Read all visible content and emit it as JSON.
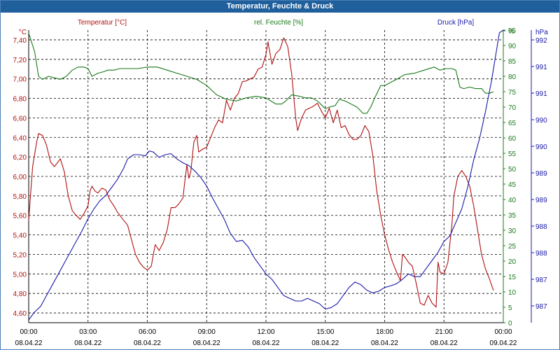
{
  "window": {
    "title": "Temperatur, Feuchte & Druck"
  },
  "colors": {
    "temperature": "#b01010",
    "humidity": "#1a7a1a",
    "pressure": "#1a1aa8",
    "grid": "#000000",
    "titlebar": "#1f5f9c"
  },
  "chart_data": {
    "type": "line",
    "title": "Temperatur, Feuchte & Druck",
    "x_unit": "hours since 08.04.22 00:00",
    "x_range": [
      0,
      24
    ],
    "x_ticks": [
      {
        "time": "00:00",
        "date": "08.04.22"
      },
      {
        "time": "03:00",
        "date": "08.04.22"
      },
      {
        "time": "06:00",
        "date": "08.04.22"
      },
      {
        "time": "09:00",
        "date": "08.04.22"
      },
      {
        "time": "12:00",
        "date": "08.04.22"
      },
      {
        "time": "15:00",
        "date": "08.04.22"
      },
      {
        "time": "18:00",
        "date": "08.04.22"
      },
      {
        "time": "21:00",
        "date": "08.04.22"
      },
      {
        "time": "00:00",
        "date": "09.04.22"
      }
    ],
    "axes": {
      "temperature": {
        "unit": "°C",
        "header": "Temperatur [°C]",
        "range": [
          4.5,
          7.5
        ],
        "ticks": [
          "4,60",
          "4,80",
          "5,00",
          "5,20",
          "5,40",
          "5,60",
          "5,80",
          "6,00",
          "6,20",
          "6,40",
          "6,60",
          "6,80",
          "7,00",
          "7,20",
          "7,40"
        ]
      },
      "humidity": {
        "unit": "%",
        "header": "rel. Feuchte [%]",
        "range": [
          0,
          95
        ],
        "ticks": [
          "0",
          "5",
          "10",
          "15",
          "20",
          "25",
          "30",
          "35",
          "40",
          "45",
          "50",
          "55",
          "60",
          "65",
          "70",
          "75",
          "80",
          "85",
          "90",
          "95",
          "%"
        ]
      },
      "pressure": {
        "unit": "hPa",
        "header": "Druck [hPa]",
        "range": [
          986.7,
          992.1
        ],
        "ticks": [
          "987",
          "987",
          "988",
          "988",
          "989",
          "989",
          "990",
          "990",
          "991",
          "991",
          "992"
        ]
      }
    },
    "grid": true,
    "series": [
      {
        "name": "Temperatur [°C]",
        "axis": "temperature",
        "points": [
          [
            0,
            5.55
          ],
          [
            0.2,
            6.1
          ],
          [
            0.4,
            6.35
          ],
          [
            0.5,
            6.44
          ],
          [
            0.7,
            6.42
          ],
          [
            0.9,
            6.32
          ],
          [
            1.1,
            6.15
          ],
          [
            1.3,
            6.1
          ],
          [
            1.6,
            6.18
          ],
          [
            1.8,
            6.05
          ],
          [
            2.0,
            5.8
          ],
          [
            2.2,
            5.65
          ],
          [
            2.4,
            5.6
          ],
          [
            2.6,
            5.56
          ],
          [
            2.8,
            5.62
          ],
          [
            3.0,
            5.7
          ],
          [
            3.1,
            5.85
          ],
          [
            3.2,
            5.9
          ],
          [
            3.35,
            5.85
          ],
          [
            3.5,
            5.83
          ],
          [
            3.7,
            5.88
          ],
          [
            3.9,
            5.86
          ],
          [
            4.1,
            5.76
          ],
          [
            4.3,
            5.7
          ],
          [
            4.5,
            5.63
          ],
          [
            4.8,
            5.55
          ],
          [
            5.0,
            5.5
          ],
          [
            5.2,
            5.35
          ],
          [
            5.4,
            5.2
          ],
          [
            5.6,
            5.12
          ],
          [
            5.8,
            5.07
          ],
          [
            6.0,
            5.04
          ],
          [
            6.2,
            5.08
          ],
          [
            6.3,
            5.2
          ],
          [
            6.4,
            5.3
          ],
          [
            6.6,
            5.24
          ],
          [
            6.8,
            5.32
          ],
          [
            7.0,
            5.45
          ],
          [
            7.2,
            5.68
          ],
          [
            7.4,
            5.68
          ],
          [
            7.6,
            5.72
          ],
          [
            7.8,
            5.78
          ],
          [
            7.9,
            5.96
          ],
          [
            8.0,
            6.12
          ],
          [
            8.1,
            5.98
          ],
          [
            8.2,
            6.05
          ],
          [
            8.35,
            6.35
          ],
          [
            8.5,
            6.42
          ],
          [
            8.6,
            6.25
          ],
          [
            8.8,
            6.28
          ],
          [
            9.0,
            6.3
          ],
          [
            9.2,
            6.4
          ],
          [
            9.4,
            6.5
          ],
          [
            9.6,
            6.58
          ],
          [
            9.8,
            6.55
          ],
          [
            10.0,
            6.78
          ],
          [
            10.2,
            6.68
          ],
          [
            10.4,
            6.8
          ],
          [
            10.6,
            6.85
          ],
          [
            10.8,
            6.97
          ],
          [
            11.0,
            6.98
          ],
          [
            11.2,
            7.0
          ],
          [
            11.4,
            7.02
          ],
          [
            11.6,
            7.1
          ],
          [
            11.8,
            7.12
          ],
          [
            12.0,
            7.25
          ],
          [
            12.1,
            7.38
          ],
          [
            12.3,
            7.15
          ],
          [
            12.5,
            7.26
          ],
          [
            12.7,
            7.3
          ],
          [
            12.9,
            7.42
          ],
          [
            13.1,
            7.33
          ],
          [
            13.3,
            7.05
          ],
          [
            13.5,
            6.6
          ],
          [
            13.6,
            6.47
          ],
          [
            13.8,
            6.6
          ],
          [
            14.0,
            6.68
          ],
          [
            14.2,
            6.7
          ],
          [
            14.4,
            6.72
          ],
          [
            14.6,
            6.75
          ],
          [
            14.8,
            6.67
          ],
          [
            15.0,
            6.6
          ],
          [
            15.2,
            6.7
          ],
          [
            15.4,
            6.55
          ],
          [
            15.6,
            6.68
          ],
          [
            15.8,
            6.5
          ],
          [
            16.0,
            6.52
          ],
          [
            16.2,
            6.43
          ],
          [
            16.4,
            6.38
          ],
          [
            16.6,
            6.38
          ],
          [
            16.8,
            6.42
          ],
          [
            17.0,
            6.52
          ],
          [
            17.2,
            6.46
          ],
          [
            17.4,
            6.22
          ],
          [
            17.6,
            5.85
          ],
          [
            17.8,
            5.6
          ],
          [
            18.0,
            5.4
          ],
          [
            18.2,
            5.25
          ],
          [
            18.4,
            5.12
          ],
          [
            18.6,
            5.02
          ],
          [
            18.8,
            4.93
          ],
          [
            18.9,
            5.2
          ],
          [
            19.0,
            5.18
          ],
          [
            19.2,
            5.12
          ],
          [
            19.4,
            5.08
          ],
          [
            19.6,
            4.9
          ],
          [
            19.8,
            4.7
          ],
          [
            20.0,
            4.68
          ],
          [
            20.2,
            4.78
          ],
          [
            20.4,
            4.7
          ],
          [
            20.6,
            4.66
          ],
          [
            20.7,
            5.12
          ],
          [
            20.8,
            5.02
          ],
          [
            21.0,
            5.0
          ],
          [
            21.2,
            5.12
          ],
          [
            21.4,
            5.5
          ],
          [
            21.5,
            5.8
          ],
          [
            21.7,
            6.0
          ],
          [
            21.9,
            6.06
          ],
          [
            22.1,
            6.0
          ],
          [
            22.3,
            5.9
          ],
          [
            22.5,
            5.7
          ],
          [
            22.7,
            5.45
          ],
          [
            22.9,
            5.2
          ],
          [
            23.1,
            5.05
          ],
          [
            23.3,
            4.95
          ],
          [
            23.5,
            4.83
          ]
        ]
      },
      {
        "name": "rel. Feuchte [%]",
        "axis": "humidity",
        "points": [
          [
            0,
            94
          ],
          [
            0.3,
            88
          ],
          [
            0.5,
            80
          ],
          [
            0.7,
            79
          ],
          [
            1.0,
            80
          ],
          [
            1.3,
            79.5
          ],
          [
            1.6,
            79
          ],
          [
            1.9,
            80
          ],
          [
            2.2,
            82
          ],
          [
            2.5,
            83
          ],
          [
            2.8,
            83
          ],
          [
            3.0,
            82.5
          ],
          [
            3.2,
            80
          ],
          [
            3.5,
            81
          ],
          [
            3.8,
            81.5
          ],
          [
            4.0,
            82
          ],
          [
            4.3,
            82
          ],
          [
            4.6,
            82.5
          ],
          [
            5.0,
            82.5
          ],
          [
            5.5,
            82.5
          ],
          [
            6.0,
            83
          ],
          [
            6.5,
            83
          ],
          [
            7.0,
            82
          ],
          [
            7.5,
            81
          ],
          [
            8.0,
            80
          ],
          [
            8.5,
            79
          ],
          [
            9.0,
            77
          ],
          [
            9.5,
            74
          ],
          [
            10.0,
            72.5
          ],
          [
            10.5,
            72
          ],
          [
            11.0,
            73
          ],
          [
            11.5,
            73.5
          ],
          [
            12.0,
            73
          ],
          [
            12.5,
            71
          ],
          [
            12.8,
            71
          ],
          [
            13.0,
            72
          ],
          [
            13.3,
            74
          ],
          [
            13.7,
            73.5
          ],
          [
            14.0,
            73
          ],
          [
            14.3,
            73
          ],
          [
            14.6,
            72
          ],
          [
            15.0,
            69.5
          ],
          [
            15.2,
            70
          ],
          [
            15.5,
            70.5
          ],
          [
            15.7,
            72.5
          ],
          [
            16.0,
            72
          ],
          [
            16.3,
            71
          ],
          [
            16.6,
            70
          ],
          [
            16.9,
            68
          ],
          [
            17.1,
            68
          ],
          [
            17.3,
            70
          ],
          [
            17.5,
            73
          ],
          [
            17.8,
            77
          ],
          [
            18.0,
            77
          ],
          [
            18.3,
            78
          ],
          [
            18.6,
            79
          ],
          [
            19.0,
            80.5
          ],
          [
            19.5,
            81
          ],
          [
            20.0,
            82
          ],
          [
            20.5,
            83
          ],
          [
            20.8,
            82
          ],
          [
            21.1,
            82.5
          ],
          [
            21.4,
            82.5
          ],
          [
            21.6,
            82
          ],
          [
            21.8,
            76.5
          ],
          [
            22.0,
            76
          ],
          [
            22.3,
            76.5
          ],
          [
            22.6,
            76
          ],
          [
            22.9,
            76
          ],
          [
            23.1,
            74.5
          ],
          [
            23.3,
            74.5
          ],
          [
            23.5,
            75
          ]
        ]
      },
      {
        "name": "Druck [hPa]",
        "axis": "pressure",
        "points": [
          [
            0,
            986.75
          ],
          [
            0.3,
            986.9
          ],
          [
            0.6,
            987.0
          ],
          [
            0.9,
            987.2
          ],
          [
            1.2,
            987.4
          ],
          [
            1.5,
            987.6
          ],
          [
            1.8,
            987.8
          ],
          [
            2.1,
            988.0
          ],
          [
            2.4,
            988.2
          ],
          [
            2.7,
            988.4
          ],
          [
            3.0,
            988.62
          ],
          [
            3.3,
            988.8
          ],
          [
            3.6,
            988.95
          ],
          [
            3.9,
            989.05
          ],
          [
            4.2,
            989.2
          ],
          [
            4.5,
            989.35
          ],
          [
            4.8,
            989.55
          ],
          [
            5.0,
            989.72
          ],
          [
            5.3,
            989.8
          ],
          [
            5.6,
            989.8
          ],
          [
            5.9,
            989.78
          ],
          [
            6.1,
            989.87
          ],
          [
            6.3,
            989.85
          ],
          [
            6.6,
            989.75
          ],
          [
            6.9,
            989.8
          ],
          [
            7.2,
            989.82
          ],
          [
            7.5,
            989.72
          ],
          [
            7.8,
            989.65
          ],
          [
            8.1,
            989.6
          ],
          [
            8.4,
            989.5
          ],
          [
            8.7,
            989.38
          ],
          [
            9.0,
            989.22
          ],
          [
            9.3,
            989.0
          ],
          [
            9.6,
            988.8
          ],
          [
            9.9,
            988.6
          ],
          [
            10.2,
            988.35
          ],
          [
            10.5,
            988.2
          ],
          [
            10.8,
            988.22
          ],
          [
            11.1,
            988.1
          ],
          [
            11.4,
            987.9
          ],
          [
            11.7,
            987.75
          ],
          [
            12.0,
            987.6
          ],
          [
            12.3,
            987.5
          ],
          [
            12.6,
            987.35
          ],
          [
            12.9,
            987.2
          ],
          [
            13.2,
            987.15
          ],
          [
            13.5,
            987.1
          ],
          [
            13.8,
            987.1
          ],
          [
            14.1,
            987.15
          ],
          [
            14.4,
            987.1
          ],
          [
            14.7,
            987.05
          ],
          [
            15.0,
            986.95
          ],
          [
            15.3,
            986.98
          ],
          [
            15.6,
            987.05
          ],
          [
            15.9,
            987.2
          ],
          [
            16.2,
            987.35
          ],
          [
            16.5,
            987.45
          ],
          [
            16.8,
            987.4
          ],
          [
            17.1,
            987.3
          ],
          [
            17.4,
            987.25
          ],
          [
            17.7,
            987.28
          ],
          [
            18.0,
            987.35
          ],
          [
            18.3,
            987.38
          ],
          [
            18.6,
            987.42
          ],
          [
            18.9,
            987.5
          ],
          [
            19.2,
            987.6
          ],
          [
            19.5,
            987.55
          ],
          [
            19.8,
            987.55
          ],
          [
            20.1,
            987.7
          ],
          [
            20.4,
            987.85
          ],
          [
            20.7,
            988.0
          ],
          [
            21.0,
            988.2
          ],
          [
            21.3,
            988.3
          ],
          [
            21.6,
            988.55
          ],
          [
            21.9,
            988.8
          ],
          [
            22.2,
            989.2
          ],
          [
            22.5,
            989.7
          ],
          [
            22.8,
            990.1
          ],
          [
            23.1,
            990.6
          ],
          [
            23.4,
            991.15
          ],
          [
            23.6,
            991.6
          ],
          [
            23.8,
            992.05
          ],
          [
            24.0,
            992.1
          ]
        ]
      }
    ]
  }
}
